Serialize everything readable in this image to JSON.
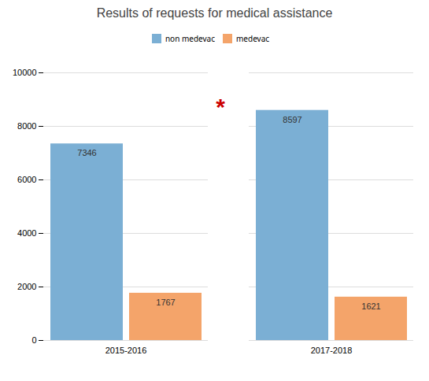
{
  "chart_data": {
    "type": "bar",
    "title": "Results of requests for medical assistance",
    "categories": [
      "2015-2016",
      "2017-2018"
    ],
    "series": [
      {
        "name": "non medevac",
        "color": "#7bafd4",
        "values": [
          7346,
          8597
        ]
      },
      {
        "name": "medevac",
        "color": "#f4a46a",
        "values": [
          1767,
          1621
        ]
      }
    ],
    "ylim": [
      0,
      10000
    ],
    "yticks": [
      0,
      2000,
      4000,
      6000,
      8000,
      10000
    ],
    "grid": true,
    "legend": "top",
    "data_labels": true,
    "annotations": [
      {
        "text": "*",
        "y": 8700,
        "color": "#cc0000"
      }
    ]
  }
}
